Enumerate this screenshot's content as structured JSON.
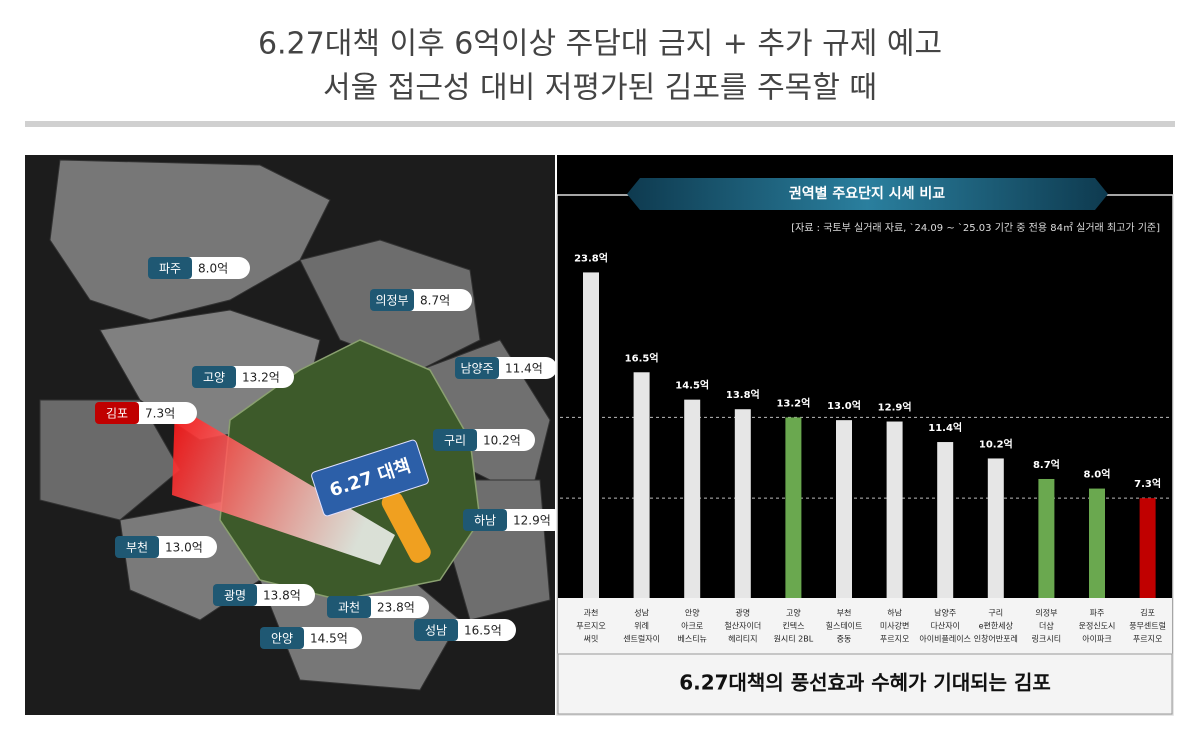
{
  "header": {
    "title_lines": [
      "6.27대책 이후 6억이상 주담대 금지 + 추가 규제 예고",
      "서울 접근성 대비 저평가된 김포를 주목할 때"
    ]
  },
  "map": {
    "badge": "6.27 대책",
    "regions": [
      {
        "name": "파주",
        "value": "8.0억"
      },
      {
        "name": "의정부",
        "value": "8.7억"
      },
      {
        "name": "고양",
        "value": "13.2억"
      },
      {
        "name": "남양주",
        "value": "11.4억"
      },
      {
        "name": "김포",
        "value": "7.3억"
      },
      {
        "name": "구리",
        "value": "10.2억"
      },
      {
        "name": "하남",
        "value": "12.9억"
      },
      {
        "name": "부천",
        "value": "13.0억"
      },
      {
        "name": "광명",
        "value": "13.8억"
      },
      {
        "name": "과천",
        "value": "23.8억"
      },
      {
        "name": "안양",
        "value": "14.5억"
      },
      {
        "name": "성남",
        "value": "16.5억"
      }
    ]
  },
  "chart_data": {
    "type": "bar",
    "title": "권역별 주요단지 시세 비교",
    "source": "[자료 : 국토부 실거래 자료, `24.09 ~ `25.03 기간 중 전용 84㎡ 실거래 최고가 기준]",
    "categories": [
      [
        "과천",
        "푸르지오",
        "써밋"
      ],
      [
        "성남",
        "위례",
        "센트럴자이"
      ],
      [
        "안양",
        "아크로",
        "베스티뉴"
      ],
      [
        "광명",
        "철산자이더",
        "헤리티지"
      ],
      [
        "고양",
        "킨텍스",
        "원시티 2BL"
      ],
      [
        "부천",
        "힐스테이트",
        "중동"
      ],
      [
        "하남",
        "미사강변",
        "푸르지오"
      ],
      [
        "남양주",
        "다산자이",
        "아이비플레이스"
      ],
      [
        "구리",
        "e편한세상",
        "인창어반포레"
      ],
      [
        "의정부",
        "더샵",
        "링크시티"
      ],
      [
        "파주",
        "운정신도시",
        "아이파크"
      ],
      [
        "김포",
        "풍무센트럴",
        "푸르지오"
      ]
    ],
    "values": [
      23.8,
      16.5,
      14.5,
      13.8,
      13.2,
      13.0,
      12.9,
      11.4,
      10.2,
      8.7,
      8.0,
      7.3
    ],
    "value_labels": [
      "23.8억",
      "16.5억",
      "14.5억",
      "13.8억",
      "13.2억",
      "13.0억",
      "12.9억",
      "11.4억",
      "10.2억",
      "8.7억",
      "8.0억",
      "7.3억"
    ],
    "colors": [
      "#e6e6e6",
      "#e6e6e6",
      "#e6e6e6",
      "#e6e6e6",
      "#6aa84f",
      "#e6e6e6",
      "#e6e6e6",
      "#e6e6e6",
      "#e6e6e6",
      "#6aa84f",
      "#6aa84f",
      "#c00000"
    ],
    "ylim": [
      0,
      25
    ],
    "caption": "6.27대책의 풍선효과 수혜가 기대되는 김포"
  }
}
